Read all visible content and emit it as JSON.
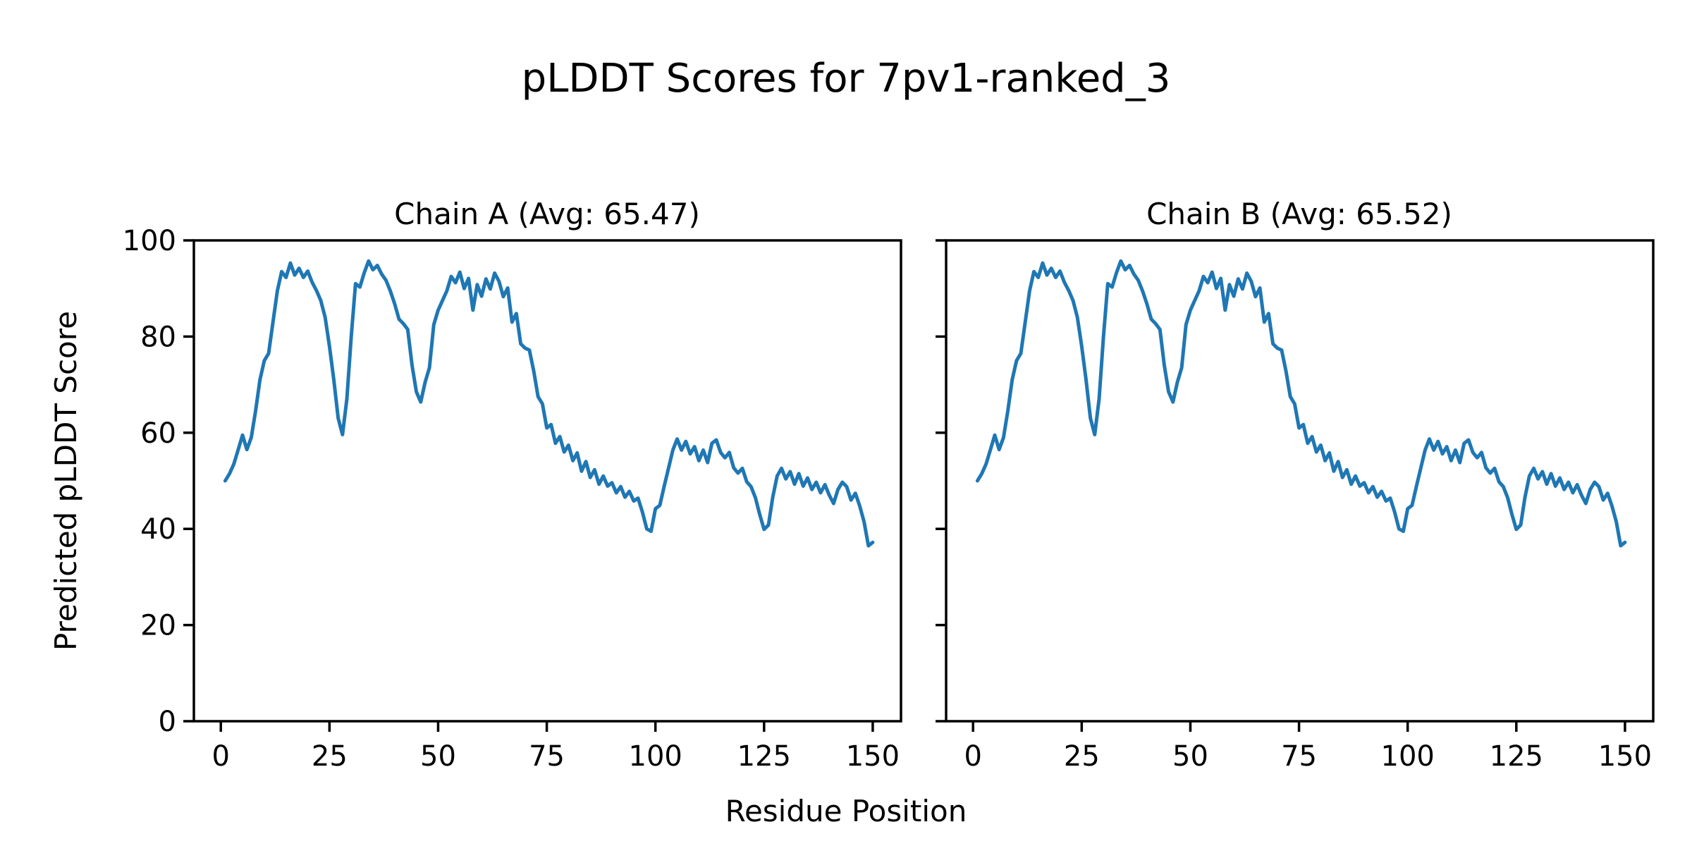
{
  "figure": {
    "title": "pLDDT Scores for 7pv1-ranked_3",
    "xlabel": "Residue Position",
    "ylabel": "Predicted pLDDT Score",
    "background": "#ffffff",
    "line_color": "#1f77b4",
    "axis_color": "#000000"
  },
  "chart_data": [
    {
      "type": "line",
      "title": "Chain A (Avg: 65.47)",
      "chain": "A",
      "avg": 65.47,
      "xlabel": "Residue Position",
      "ylabel": "Predicted pLDDT Score",
      "x_start": 1,
      "xlim": [
        -6.2,
        156.5
      ],
      "ylim": [
        0,
        100
      ],
      "xticks": [
        0,
        25,
        50,
        75,
        100,
        125,
        150
      ],
      "yticks": [
        0,
        20,
        40,
        60,
        80,
        100
      ],
      "grid": false,
      "legend": false,
      "values": [
        50.0,
        51.5,
        53.5,
        56.5,
        59.5,
        56.5,
        59.0,
        64.5,
        71.0,
        75.0,
        76.5,
        83.0,
        89.5,
        93.5,
        92.3,
        95.3,
        92.8,
        94.2,
        92.3,
        93.6,
        91.3,
        89.6,
        87.5,
        84.0,
        78.0,
        71.0,
        63.0,
        59.6,
        67.0,
        80.0,
        91.0,
        90.3,
        93.3,
        95.7,
        93.9,
        94.8,
        93.0,
        91.7,
        89.5,
        86.8,
        83.6,
        82.7,
        81.5,
        74.0,
        68.5,
        66.4,
        70.5,
        73.5,
        82.5,
        85.5,
        87.5,
        89.5,
        92.5,
        91.2,
        93.4,
        90.0,
        92.1,
        85.5,
        90.8,
        88.4,
        92.0,
        89.9,
        93.2,
        91.5,
        88.3,
        90.1,
        83.0,
        84.8,
        78.5,
        77.6,
        77.2,
        72.8,
        67.5,
        66.0,
        61.0,
        61.7,
        57.8,
        59.2,
        56.0,
        57.4,
        54.2,
        55.8,
        52.0,
        54.0,
        50.7,
        52.3,
        49.3,
        51.0,
        48.9,
        49.6,
        47.5,
        48.8,
        46.6,
        47.8,
        45.8,
        46.4,
        43.5,
        40.0,
        39.5,
        44.2,
        44.9,
        48.8,
        52.6,
        56.4,
        58.7,
        56.4,
        58.2,
        55.6,
        57.1,
        54.2,
        56.4,
        53.8,
        57.8,
        58.5,
        55.9,
        54.8,
        55.9,
        52.7,
        51.6,
        52.6,
        49.8,
        48.8,
        46.5,
        43.0,
        39.9,
        40.8,
        46.6,
        51.0,
        52.6,
        50.4,
        51.9,
        49.3,
        51.5,
        48.9,
        50.6,
        48.2,
        49.7,
        47.5,
        49.2,
        47.0,
        45.3,
        48.2,
        49.7,
        48.8,
        46.0,
        47.4,
        44.8,
        41.5,
        36.5,
        37.2
      ]
    },
    {
      "type": "line",
      "title": "Chain B (Avg: 65.52)",
      "chain": "B",
      "avg": 65.52,
      "xlabel": "Residue Position",
      "ylabel": "",
      "x_start": 1,
      "xlim": [
        -6.2,
        156.5
      ],
      "ylim": [
        0,
        100
      ],
      "xticks": [
        0,
        25,
        50,
        75,
        100,
        125,
        150
      ],
      "yticks": [
        0,
        20,
        40,
        60,
        80,
        100
      ],
      "grid": false,
      "legend": false,
      "values": [
        50.0,
        51.5,
        53.5,
        56.5,
        59.5,
        56.5,
        59.0,
        64.5,
        71.0,
        75.0,
        76.5,
        83.0,
        89.5,
        93.5,
        92.3,
        95.3,
        92.8,
        94.2,
        92.3,
        93.6,
        91.3,
        89.6,
        87.5,
        84.0,
        78.0,
        71.0,
        63.0,
        59.6,
        67.0,
        80.0,
        91.0,
        90.3,
        93.3,
        95.7,
        93.9,
        94.8,
        93.0,
        91.7,
        89.5,
        86.8,
        83.6,
        82.7,
        81.5,
        74.0,
        68.5,
        66.4,
        70.5,
        73.5,
        82.5,
        85.5,
        87.5,
        89.5,
        92.5,
        91.2,
        93.4,
        90.0,
        92.1,
        85.5,
        90.8,
        88.4,
        92.0,
        89.9,
        93.2,
        91.5,
        88.3,
        90.1,
        83.0,
        84.8,
        78.5,
        77.6,
        77.2,
        72.8,
        67.5,
        66.0,
        61.0,
        61.7,
        57.8,
        59.2,
        56.0,
        57.4,
        54.2,
        55.8,
        52.0,
        54.0,
        50.7,
        52.3,
        49.3,
        51.0,
        48.9,
        49.6,
        47.5,
        48.8,
        46.6,
        47.8,
        45.8,
        46.4,
        43.5,
        40.0,
        39.5,
        44.2,
        44.9,
        48.8,
        52.6,
        56.4,
        58.7,
        56.4,
        58.2,
        55.6,
        57.1,
        54.2,
        56.4,
        53.8,
        57.8,
        58.5,
        55.9,
        54.8,
        55.9,
        52.7,
        51.6,
        52.6,
        49.8,
        48.8,
        46.5,
        43.0,
        39.9,
        40.8,
        46.6,
        51.0,
        52.6,
        50.4,
        51.9,
        49.3,
        51.5,
        48.9,
        50.6,
        48.2,
        49.7,
        47.5,
        49.2,
        47.0,
        45.3,
        48.2,
        49.7,
        48.8,
        46.0,
        47.4,
        44.8,
        41.5,
        36.5,
        37.2
      ]
    }
  ]
}
